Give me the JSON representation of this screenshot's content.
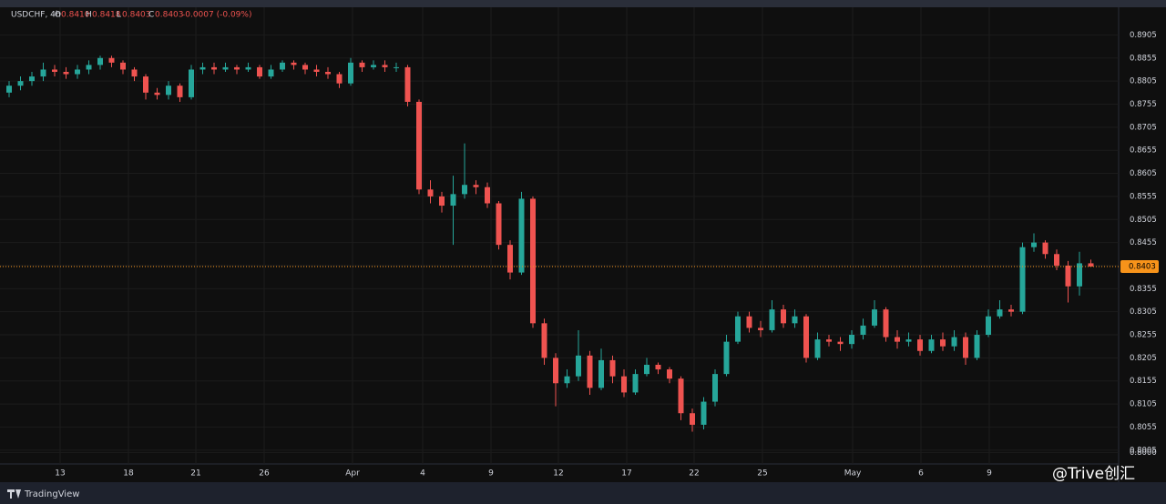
{
  "header": {
    "symbol": "USDCHF, 4h",
    "o_label": "O",
    "open": "0.8410",
    "h_label": "H",
    "high": "0.8418",
    "l_label": "L",
    "low": "0.8403",
    "c_label": "C",
    "close": "0.8403",
    "change": "-0.0007 (-0.09%)"
  },
  "footer": {
    "brand": "TradingView",
    "watermark": "@Trive创汇"
  },
  "chart_data": {
    "type": "candlestick",
    "up_color": "#26a69a",
    "down_color": "#ef5350",
    "grid": true,
    "last_price": 0.8403,
    "last_price_color": "#f7931a",
    "xlim": [
      0,
      49.12
    ],
    "xticks": [
      {
        "value": 2.64,
        "label": "13"
      },
      {
        "value": 5.64,
        "label": "18"
      },
      {
        "value": 8.6,
        "label": "21"
      },
      {
        "value": 11.6,
        "label": "26"
      },
      {
        "value": 15.48,
        "label": "Apr"
      },
      {
        "value": 18.56,
        "label": "4"
      },
      {
        "value": 21.56,
        "label": "9"
      },
      {
        "value": 24.52,
        "label": "12"
      },
      {
        "value": 27.52,
        "label": "17"
      },
      {
        "value": 30.48,
        "label": "22"
      },
      {
        "value": 33.48,
        "label": "25"
      },
      {
        "value": 37.44,
        "label": "May"
      },
      {
        "value": 40.44,
        "label": "6"
      },
      {
        "value": 43.44,
        "label": "9"
      }
    ],
    "ylim": [
      0.7975,
      0.8965
    ],
    "yticks": [
      {
        "value": 0.8,
        "label": "0.8000"
      },
      0.8005,
      0.8055,
      0.8105,
      0.8155,
      0.8205,
      0.8255,
      0.8305,
      0.8355,
      0.8405,
      0.8455,
      0.8505,
      0.8555,
      0.8605,
      0.8655,
      0.8705,
      0.8755,
      0.8805,
      0.8855,
      0.8905
    ],
    "x": [
      0.4,
      0.9,
      1.4,
      1.9,
      2.4,
      2.9,
      3.4,
      3.9,
      4.4,
      4.9,
      5.4,
      5.9,
      6.4,
      6.9,
      7.4,
      7.9,
      8.4,
      8.9,
      9.4,
      9.9,
      10.4,
      10.9,
      11.4,
      11.9,
      12.4,
      12.9,
      13.4,
      13.9,
      14.4,
      14.9,
      15.4,
      15.9,
      16.4,
      16.9,
      17.4,
      17.9,
      18.4,
      18.9,
      19.4,
      19.9,
      20.4,
      20.9,
      21.4,
      21.9,
      22.4,
      22.9,
      23.4,
      23.9,
      24.4,
      24.9,
      25.4,
      25.9,
      26.4,
      26.9,
      27.4,
      27.9,
      28.4,
      28.9,
      29.4,
      29.9,
      30.4,
      30.9,
      31.4,
      31.9,
      32.4,
      32.9,
      33.4,
      33.9,
      34.4,
      34.9,
      35.4,
      35.9,
      36.4,
      36.9,
      37.4,
      37.9,
      38.4,
      38.9,
      39.4,
      39.9,
      40.4,
      40.9,
      41.4,
      41.9,
      42.4,
      42.9,
      43.4,
      43.9,
      44.4,
      44.9,
      45.4,
      45.9,
      46.4,
      46.9,
      47.4,
      47.9
    ],
    "open": [
      0.878,
      0.8795,
      0.8805,
      0.8815,
      0.883,
      0.8825,
      0.882,
      0.883,
      0.884,
      0.8855,
      0.8845,
      0.883,
      0.8815,
      0.878,
      0.8775,
      0.8795,
      0.877,
      0.883,
      0.8835,
      0.883,
      0.8835,
      0.883,
      0.8835,
      0.8815,
      0.883,
      0.8845,
      0.884,
      0.883,
      0.8825,
      0.882,
      0.88,
      0.8845,
      0.8835,
      0.884,
      0.8835,
      0.8835,
      0.876,
      0.857,
      0.8555,
      0.8535,
      0.856,
      0.858,
      0.8575,
      0.854,
      0.845,
      0.839,
      0.855,
      0.828,
      0.8205,
      0.815,
      0.8165,
      0.821,
      0.814,
      0.82,
      0.8165,
      0.813,
      0.817,
      0.819,
      0.818,
      0.816,
      0.8085,
      0.806,
      0.811,
      0.817,
      0.824,
      0.8295,
      0.827,
      0.8265,
      0.831,
      0.828,
      0.8295,
      0.8205,
      0.8245,
      0.824,
      0.8235,
      0.8255,
      0.8275,
      0.831,
      0.825,
      0.824,
      0.8245,
      0.822,
      0.8245,
      0.823,
      0.825,
      0.8205,
      0.8255,
      0.8295,
      0.831,
      0.8305,
      0.8445,
      0.8455,
      0.843,
      0.8405,
      0.836,
      0.841
    ],
    "high": [
      0.8805,
      0.8815,
      0.8825,
      0.8845,
      0.884,
      0.8835,
      0.884,
      0.885,
      0.886,
      0.886,
      0.885,
      0.8835,
      0.882,
      0.879,
      0.8805,
      0.88,
      0.884,
      0.8845,
      0.8845,
      0.8845,
      0.884,
      0.8845,
      0.884,
      0.884,
      0.885,
      0.885,
      0.8845,
      0.884,
      0.8835,
      0.8825,
      0.8855,
      0.885,
      0.885,
      0.885,
      0.8845,
      0.884,
      0.8765,
      0.859,
      0.8565,
      0.86,
      0.867,
      0.859,
      0.8585,
      0.8545,
      0.846,
      0.8565,
      0.8555,
      0.829,
      0.8215,
      0.818,
      0.8265,
      0.822,
      0.8225,
      0.821,
      0.818,
      0.818,
      0.8205,
      0.8195,
      0.8185,
      0.8165,
      0.8095,
      0.812,
      0.818,
      0.8255,
      0.8305,
      0.8305,
      0.8285,
      0.833,
      0.832,
      0.831,
      0.83,
      0.826,
      0.8255,
      0.825,
      0.8265,
      0.829,
      0.833,
      0.8315,
      0.8265,
      0.826,
      0.8255,
      0.8255,
      0.826,
      0.8265,
      0.826,
      0.8265,
      0.831,
      0.833,
      0.832,
      0.8455,
      0.8475,
      0.846,
      0.844,
      0.8415,
      0.8435,
      0.8418
    ],
    "low": [
      0.877,
      0.8785,
      0.8795,
      0.8805,
      0.8815,
      0.881,
      0.881,
      0.882,
      0.883,
      0.8835,
      0.882,
      0.8805,
      0.8765,
      0.8765,
      0.8765,
      0.876,
      0.8765,
      0.882,
      0.882,
      0.8825,
      0.882,
      0.8825,
      0.881,
      0.881,
      0.8825,
      0.883,
      0.882,
      0.8815,
      0.881,
      0.879,
      0.8795,
      0.8825,
      0.883,
      0.8825,
      0.8825,
      0.875,
      0.856,
      0.854,
      0.852,
      0.845,
      0.855,
      0.856,
      0.853,
      0.844,
      0.8375,
      0.8385,
      0.827,
      0.819,
      0.81,
      0.814,
      0.8155,
      0.8125,
      0.8135,
      0.815,
      0.812,
      0.8125,
      0.8165,
      0.817,
      0.815,
      0.807,
      0.8045,
      0.805,
      0.81,
      0.8165,
      0.8235,
      0.826,
      0.825,
      0.826,
      0.827,
      0.827,
      0.8195,
      0.82,
      0.823,
      0.822,
      0.8225,
      0.8245,
      0.827,
      0.824,
      0.8225,
      0.823,
      0.821,
      0.8215,
      0.822,
      0.822,
      0.819,
      0.82,
      0.825,
      0.829,
      0.8295,
      0.83,
      0.8435,
      0.842,
      0.8395,
      0.8325,
      0.834,
      0.8403
    ],
    "close": [
      0.8795,
      0.8805,
      0.8815,
      0.883,
      0.8825,
      0.882,
      0.883,
      0.884,
      0.8855,
      0.8845,
      0.883,
      0.8815,
      0.878,
      0.8775,
      0.8795,
      0.877,
      0.883,
      0.8835,
      0.883,
      0.8835,
      0.883,
      0.8835,
      0.8815,
      0.883,
      0.8845,
      0.884,
      0.883,
      0.8825,
      0.882,
      0.88,
      0.8845,
      0.8835,
      0.884,
      0.8835,
      0.8835,
      0.876,
      0.857,
      0.8555,
      0.8535,
      0.856,
      0.858,
      0.8575,
      0.854,
      0.845,
      0.839,
      0.855,
      0.828,
      0.8205,
      0.815,
      0.8165,
      0.821,
      0.814,
      0.82,
      0.8165,
      0.813,
      0.817,
      0.819,
      0.818,
      0.816,
      0.8085,
      0.806,
      0.811,
      0.817,
      0.824,
      0.8295,
      0.827,
      0.8265,
      0.831,
      0.828,
      0.8295,
      0.8205,
      0.8245,
      0.824,
      0.8235,
      0.8255,
      0.8275,
      0.831,
      0.825,
      0.824,
      0.8245,
      0.822,
      0.8245,
      0.823,
      0.825,
      0.8205,
      0.8255,
      0.8295,
      0.831,
      0.8305,
      0.8445,
      0.8455,
      0.843,
      0.8405,
      0.836,
      0.841,
      0.8403
    ]
  }
}
